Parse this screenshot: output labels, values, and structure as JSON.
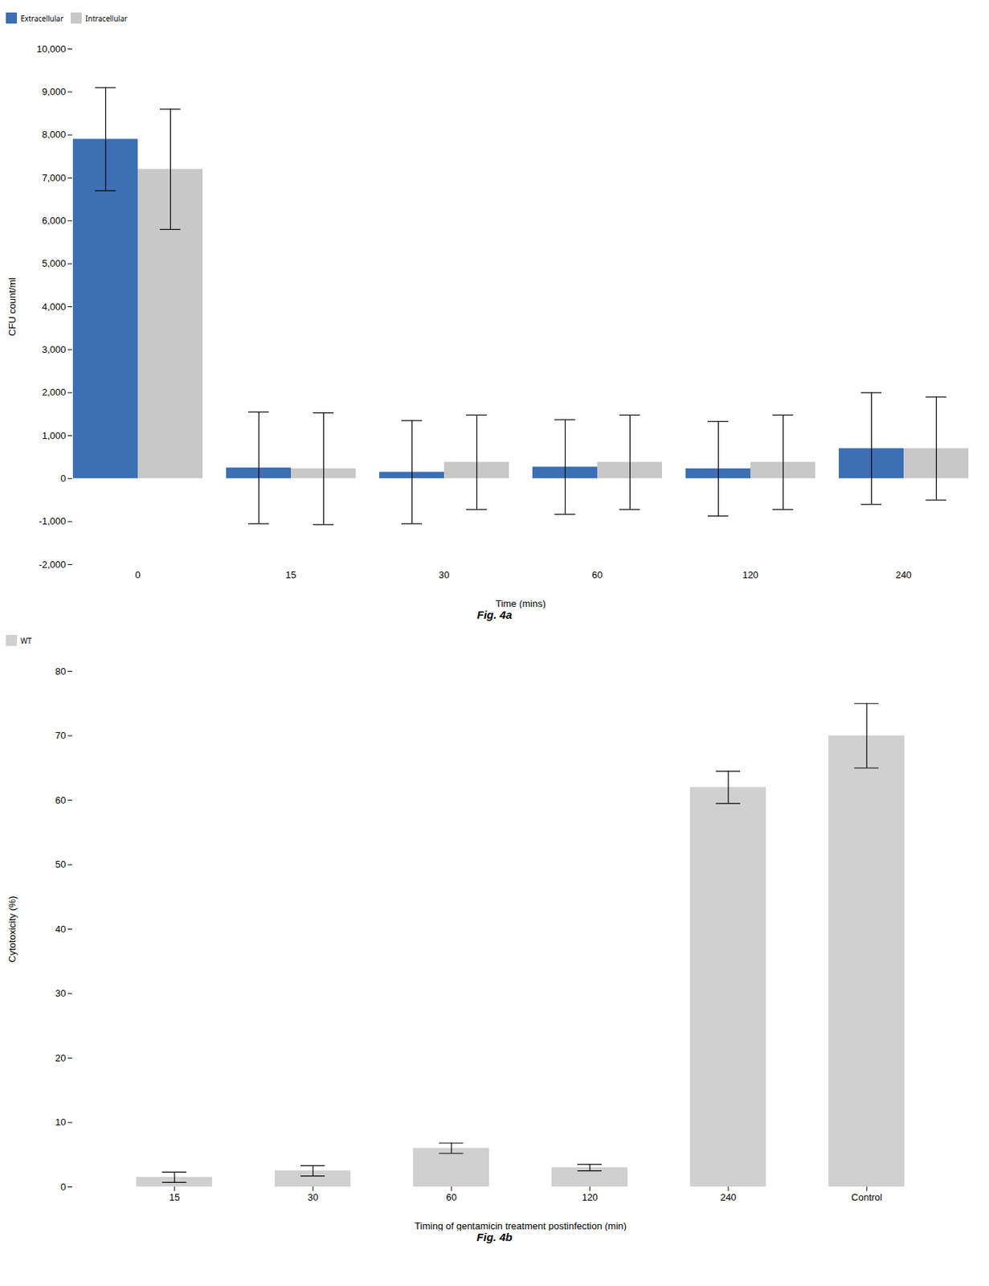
{
  "chart_data": [
    {
      "type": "bar",
      "categories": [
        "0",
        "15",
        "30",
        "60",
        "120",
        "240"
      ],
      "series": [
        {
          "name": "Extracellular",
          "color": "#3d6fb5",
          "values": [
            7900,
            250,
            150,
            270,
            230,
            700
          ],
          "errors": [
            1200,
            1300,
            1200,
            1100,
            1100,
            1300
          ]
        },
        {
          "name": "Intracellular",
          "color": "#c8c8c8",
          "values": [
            7200,
            230,
            380,
            380,
            380,
            700
          ],
          "errors": [
            1400,
            1300,
            1100,
            1100,
            1100,
            1200
          ]
        }
      ],
      "xlabel": "Time (mins)",
      "ylabel": "CFU count/ml",
      "ylim": [
        -2000,
        10000
      ],
      "yticks": [
        {
          "value": -2000,
          "label": "-2,000"
        },
        {
          "value": -1000,
          "label": "-1,000"
        },
        0,
        {
          "value": 1000,
          "label": "1,000"
        },
        {
          "value": 2000,
          "label": "2,000"
        },
        {
          "value": 3000,
          "label": "3,000"
        },
        {
          "value": 4000,
          "label": "4,000"
        },
        {
          "value": 5000,
          "label": "5,000"
        },
        {
          "value": 6000,
          "label": "6,000"
        },
        {
          "value": 7000,
          "label": "7,000"
        },
        {
          "value": 8000,
          "label": "8,000"
        },
        {
          "value": 9000,
          "label": "9,000"
        },
        {
          "value": 10000,
          "label": "10,000"
        }
      ],
      "grid": false,
      "legend": "top",
      "caption": "Fig. 4a"
    },
    {
      "type": "bar",
      "categories": [
        "15",
        "30",
        "60",
        "120",
        "240",
        "Control"
      ],
      "series": [
        {
          "name": "WT",
          "color": "#d0d0d0",
          "values": [
            1.5,
            2.5,
            6.0,
            3.0,
            62.0,
            70.0
          ],
          "errors": [
            0.8,
            0.8,
            0.8,
            0.5,
            2.5,
            5.0
          ]
        }
      ],
      "xlabel": "Timing of gentamicin treatment postinfection (min)",
      "ylabel": "Cytotoxicity (%)",
      "ylim": [
        0,
        80
      ],
      "yticks": [
        0,
        10,
        20,
        30,
        40,
        50,
        60,
        70,
        80
      ],
      "grid": false,
      "legend": "top",
      "caption": "Fig. 4b"
    }
  ]
}
